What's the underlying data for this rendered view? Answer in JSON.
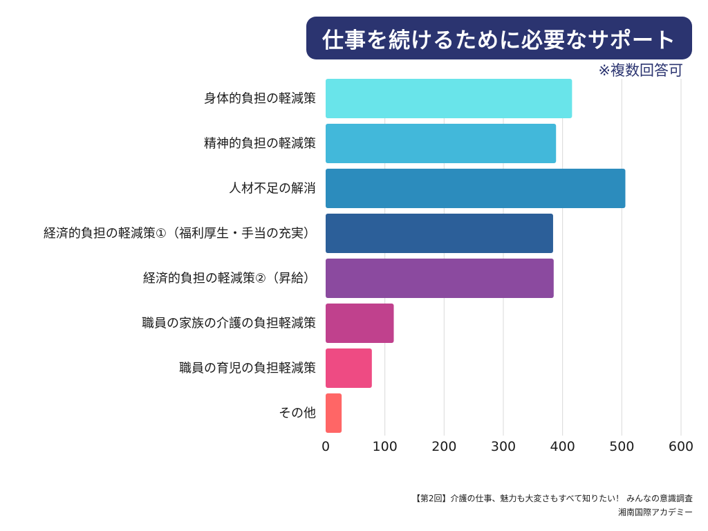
{
  "title": "仕事を続けるために必要なサポート",
  "subtitle": "※複数回答可",
  "footer": {
    "source": "【第2回】介護の仕事、魅力も大変さもすべて知りたい！ みんなの意識調査",
    "publisher": "湘南国際アカデミー"
  },
  "chart_data": {
    "type": "bar",
    "orientation": "horizontal",
    "categories": [
      "身体的負担の軽減策",
      "精神的負担の軽減策",
      "人材不足の解消",
      "経済的負担の軽減策①（福利厚生・手当の充実）",
      "経済的負担の軽減策②（昇給）",
      "職員の家族の介護の負担軽減策",
      "職員の育児の負担軽減策",
      "その他"
    ],
    "values": [
      416,
      389,
      506,
      384,
      385,
      115,
      78,
      27
    ],
    "colors": [
      "#69e4ea",
      "#42b8da",
      "#2c8cbd",
      "#2c5f99",
      "#8b4a9f",
      "#c0418d",
      "#ee4b83",
      "#ff6666"
    ],
    "xlim": [
      0,
      600
    ],
    "xticks": [
      "0",
      "100",
      "200",
      "300",
      "400",
      "500",
      "600"
    ],
    "grid": true,
    "legend": "none"
  }
}
